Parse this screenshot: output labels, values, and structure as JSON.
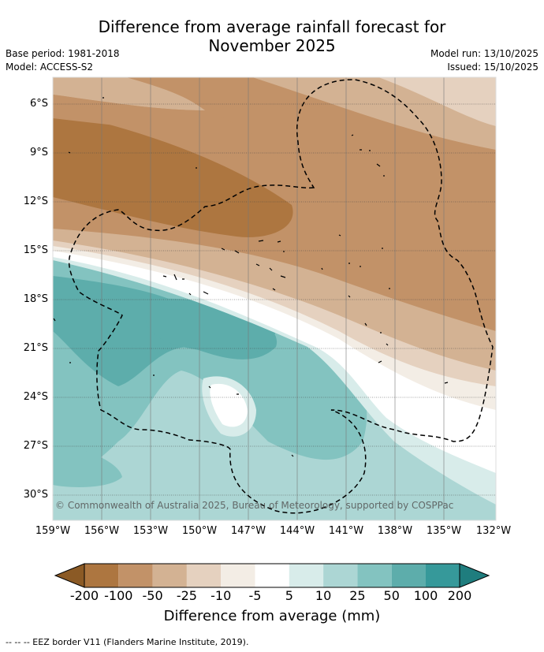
{
  "title": "Difference from average rainfall forecast for November 2025",
  "title_lines": [
    "Difference from average rainfall forecast for",
    "November 2025"
  ],
  "base_period": "Base period: 1981-2018",
  "model": "Model: ACCESS-S2",
  "model_run": "Model run: 13/10/2025",
  "issued": "Issued: 15/10/2025",
  "copyright": "© Commonwealth of Australia 2025, Bureau of Meteorology, supported by COSPPac",
  "lat_labels": [
    "6°S",
    "9°S",
    "12°S",
    "15°S",
    "18°S",
    "21°S",
    "24°S",
    "27°S",
    "30°S"
  ],
  "lon_labels": [
    "159°W",
    "156°W",
    "153°W",
    "150°W",
    "147°W",
    "144°W",
    "141°W",
    "138°W",
    "135°W",
    "132°W"
  ],
  "colorbar": {
    "ticks": [
      "-200",
      "-100",
      "-50",
      "-25",
      "-10",
      "-5",
      "5",
      "10",
      "25",
      "50",
      "100",
      "200"
    ],
    "colors": [
      "#8b5a25",
      "#ad7640",
      "#c29268",
      "#d3b293",
      "#e5d1bf",
      "#f3ede5",
      "#ffffff",
      "#d8ecea",
      "#acd6d4",
      "#83c3c0",
      "#5dadab",
      "#36999a",
      "#1f7d7e"
    ],
    "title": "Difference from average (mm)"
  },
  "footer": "-- -- -- EEZ border V11 (Flanders Marine Institute, 2019)."
}
